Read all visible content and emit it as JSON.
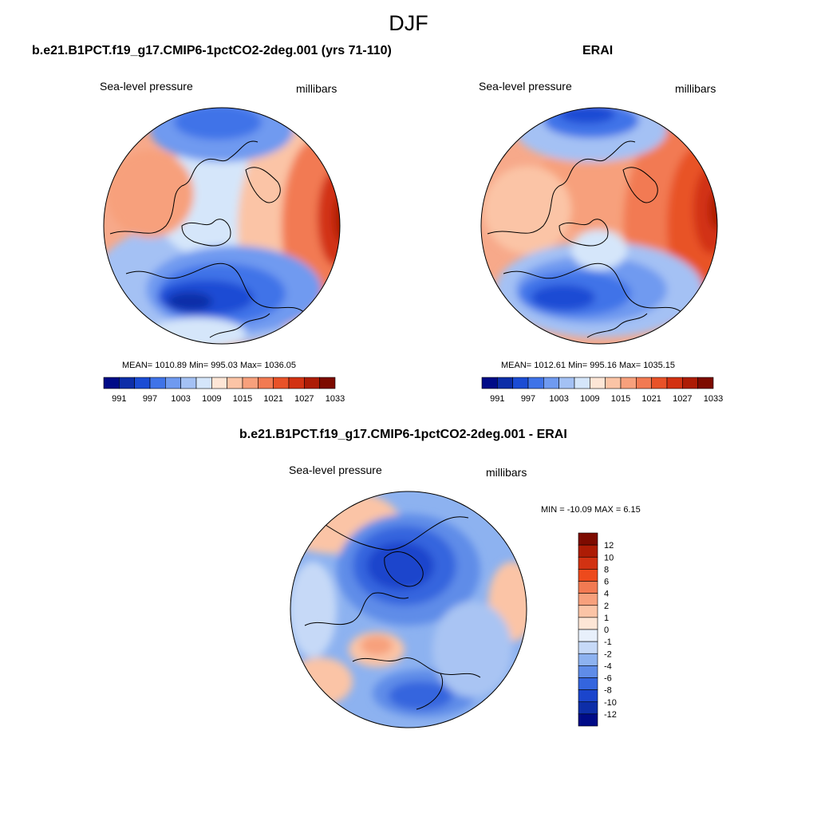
{
  "main_title": "DJF",
  "panels": [
    {
      "title": "b.e21.B1PCT.f19_g17.CMIP6-1pctCO2-2deg.001 (yrs 71-110)",
      "left_label": "Sea-level pressure",
      "right_label": "millibars",
      "stats": "MEAN= 1010.89  Min= 995.03  Max= 1036.05"
    },
    {
      "title": "ERAI",
      "left_label": "Sea-level pressure",
      "right_label": "millibars",
      "stats": "MEAN= 1012.61  Min= 995.16  Max= 1035.15"
    },
    {
      "title": "b.e21.B1PCT.f19_g17.CMIP6-1pctCO2-2deg.001 - ERAI",
      "left_label": "Sea-level pressure",
      "right_label": "millibars",
      "stats": "MIN = -10.09 MAX =   6.15"
    }
  ],
  "colorbar_slp": {
    "tick_labels": [
      "991",
      "997",
      "1003",
      "1009",
      "1015",
      "1021",
      "1027",
      "1033"
    ],
    "colors": [
      "#000b87",
      "#0d2ea8",
      "#1b4cd4",
      "#3f73e8",
      "#6f9af0",
      "#a4c1f4",
      "#d5e6fa",
      "#fde6d6",
      "#fbc4a6",
      "#f7a07c",
      "#f27a52",
      "#e85228",
      "#d23212",
      "#ad1c05",
      "#7d0b00"
    ]
  },
  "colorbar_diff": {
    "tick_labels": [
      "12",
      "10",
      "8",
      "6",
      "4",
      "2",
      "1",
      "0",
      "-1",
      "-2",
      "-4",
      "-6",
      "-8",
      "-10",
      "-12"
    ],
    "colors": [
      "#7d0b00",
      "#ad1c05",
      "#d23212",
      "#ed4a1c",
      "#f27a52",
      "#f7a07c",
      "#fbc4a6",
      "#fde6d6",
      "#e8f0fb",
      "#c6d9f7",
      "#8db2f0",
      "#5f8ce8",
      "#3465de",
      "#1b45cc",
      "#0d2ea8",
      "#000b87"
    ]
  }
}
